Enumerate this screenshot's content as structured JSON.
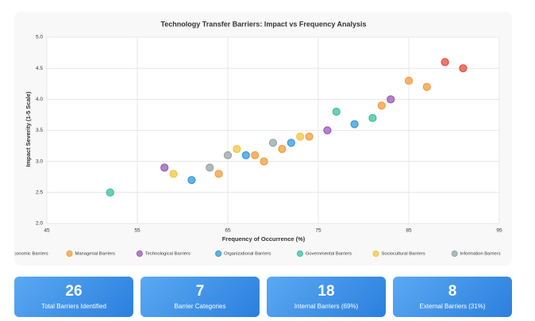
{
  "chart_data": {
    "type": "scatter",
    "title": "Technology Transfer Barriers: Impact vs Frequency Analysis",
    "x_label": "Frequency of Occurrence (%)",
    "y_label": "Impact Severity (1-5 Scale)",
    "xlim": [
      45,
      95
    ],
    "xticks": [
      45,
      55,
      65,
      75,
      85,
      95
    ],
    "ylim": [
      2,
      5
    ],
    "yticks": [
      {
        "value": 2,
        "label": "2.0"
      },
      2.5,
      {
        "value": 3,
        "label": "3.0"
      },
      3.5,
      {
        "value": 4,
        "label": "4.0"
      },
      4.5,
      {
        "value": 5,
        "label": "5.0"
      }
    ],
    "grid": true,
    "series": [
      {
        "name": "Economic Barriers",
        "color": "#e74c3c",
        "x": [
          89,
          91
        ],
        "values": [
          4.6,
          4.5
        ]
      },
      {
        "name": "Managerial Barriers",
        "color": "#f39c3c",
        "x": [
          85,
          87,
          82,
          74,
          71,
          69,
          68,
          64
        ],
        "values": [
          4.3,
          4.2,
          3.9,
          3.4,
          3.2,
          3.0,
          3.1,
          2.8
        ]
      },
      {
        "name": "Technological Barriers",
        "color": "#9b59b6",
        "x": [
          58,
          76,
          83
        ],
        "values": [
          2.9,
          3.5,
          4.0
        ]
      },
      {
        "name": "Organizational Barriers",
        "color": "#3498db",
        "x": [
          61,
          67,
          72,
          79
        ],
        "values": [
          2.7,
          3.1,
          3.3,
          3.6
        ]
      },
      {
        "name": "Governmental Barriers",
        "color": "#3fbf9f",
        "x": [
          52,
          77,
          81
        ],
        "values": [
          2.5,
          3.8,
          3.7
        ]
      },
      {
        "name": "Sociocultural Barriers",
        "color": "#f4c542",
        "x": [
          59,
          66,
          73
        ],
        "values": [
          2.8,
          3.2,
          3.4
        ]
      },
      {
        "name": "Information Barriers",
        "color": "#95a5a6",
        "x": [
          63,
          65,
          70
        ],
        "values": [
          2.9,
          3.1,
          3.3
        ]
      }
    ]
  },
  "stats": [
    {
      "value": "26",
      "label": "Total Barriers Identified"
    },
    {
      "value": "7",
      "label": "Barrier Categories"
    },
    {
      "value": "18",
      "label": "Internal Barriers (69%)"
    },
    {
      "value": "8",
      "label": "External Barriers (31%)"
    }
  ]
}
